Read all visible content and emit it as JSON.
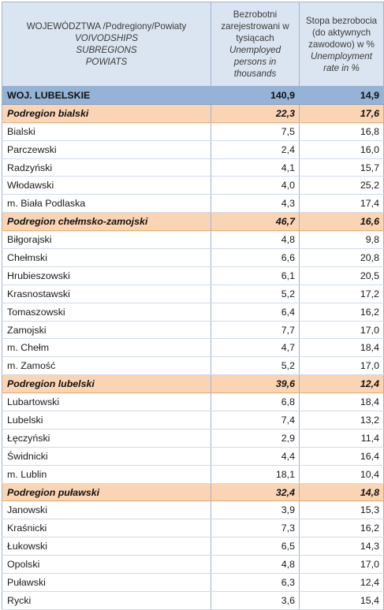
{
  "header": {
    "col1_line1": "WOJEWÓDZTWA /Podregiony/Powiaty",
    "col1_line2": "VOIVODSHIPS",
    "col1_line3": "SUBREGIONS",
    "col1_line4": "POWIATS",
    "col2_pl": "Bezrobotni zarejestrowani w tysiącach",
    "col2_en": "Unemployed persons in thousands",
    "col3_pl": "Stopa bezrobocia  (do aktywnych zawodowo) w %",
    "col3_en": "Unemployment rate in  %"
  },
  "rows": [
    {
      "type": "voiv",
      "name": "WOJ. LUBELSKIE",
      "unemployed": "140,9",
      "rate": "14,9"
    },
    {
      "type": "subreg",
      "name": "Podregion bialski",
      "unemployed": "22,3",
      "rate": "17,6"
    },
    {
      "type": "pow",
      "name": "Bialski",
      "unemployed": "7,5",
      "rate": "16,8"
    },
    {
      "type": "pow",
      "name": "Parczewski",
      "unemployed": "2,4",
      "rate": "16,0"
    },
    {
      "type": "pow",
      "name": "Radzyński",
      "unemployed": "4,1",
      "rate": "15,7"
    },
    {
      "type": "pow",
      "name": "Włodawski",
      "unemployed": "4,0",
      "rate": "25,2"
    },
    {
      "type": "pow",
      "name": "m. Biała Podlaska",
      "unemployed": "4,3",
      "rate": "17,4"
    },
    {
      "type": "subreg",
      "name": "Podregion chełmsko-zamojski",
      "unemployed": "46,7",
      "rate": "16,6"
    },
    {
      "type": "pow",
      "name": "Biłgorajski",
      "unemployed": "4,8",
      "rate": "9,8"
    },
    {
      "type": "pow",
      "name": "Chełmski",
      "unemployed": "6,6",
      "rate": "20,8"
    },
    {
      "type": "pow",
      "name": "Hrubieszowski",
      "unemployed": "6,1",
      "rate": "20,5"
    },
    {
      "type": "pow",
      "name": "Krasnostawski",
      "unemployed": "5,2",
      "rate": "17,2"
    },
    {
      "type": "pow",
      "name": "Tomaszowski",
      "unemployed": "6,4",
      "rate": "16,2"
    },
    {
      "type": "pow",
      "name": "Zamojski",
      "unemployed": "7,7",
      "rate": "17,0"
    },
    {
      "type": "pow",
      "name": "m. Chełm",
      "unemployed": "4,7",
      "rate": "18,4"
    },
    {
      "type": "pow",
      "name": "m. Zamość",
      "unemployed": "5,2",
      "rate": "17,0"
    },
    {
      "type": "subreg",
      "name": "Podregion lubelski",
      "unemployed": "39,6",
      "rate": "12,4"
    },
    {
      "type": "pow",
      "name": "Lubartowski",
      "unemployed": "6,8",
      "rate": "18,4"
    },
    {
      "type": "pow",
      "name": "Lubelski",
      "unemployed": "7,4",
      "rate": "13,2"
    },
    {
      "type": "pow",
      "name": "Łęczyński",
      "unemployed": "2,9",
      "rate": "11,4"
    },
    {
      "type": "pow",
      "name": "Świdnicki",
      "unemployed": "4,4",
      "rate": "16,4"
    },
    {
      "type": "pow",
      "name": "m. Lublin",
      "unemployed": "18,1",
      "rate": "10,4"
    },
    {
      "type": "subreg",
      "name": "Podregion puławski",
      "unemployed": "32,4",
      "rate": "14,8"
    },
    {
      "type": "pow",
      "name": "Janowski",
      "unemployed": "3,9",
      "rate": "15,3"
    },
    {
      "type": "pow",
      "name": "Kraśnicki",
      "unemployed": "7,3",
      "rate": "16,2"
    },
    {
      "type": "pow",
      "name": "Łukowski",
      "unemployed": "6,5",
      "rate": "14,3"
    },
    {
      "type": "pow",
      "name": "Opolski",
      "unemployed": "4,8",
      "rate": "17,0"
    },
    {
      "type": "pow",
      "name": "Puławski",
      "unemployed": "6,3",
      "rate": "12,4"
    },
    {
      "type": "pow",
      "name": "Rycki",
      "unemployed": "3,6",
      "rate": "15,4"
    }
  ]
}
